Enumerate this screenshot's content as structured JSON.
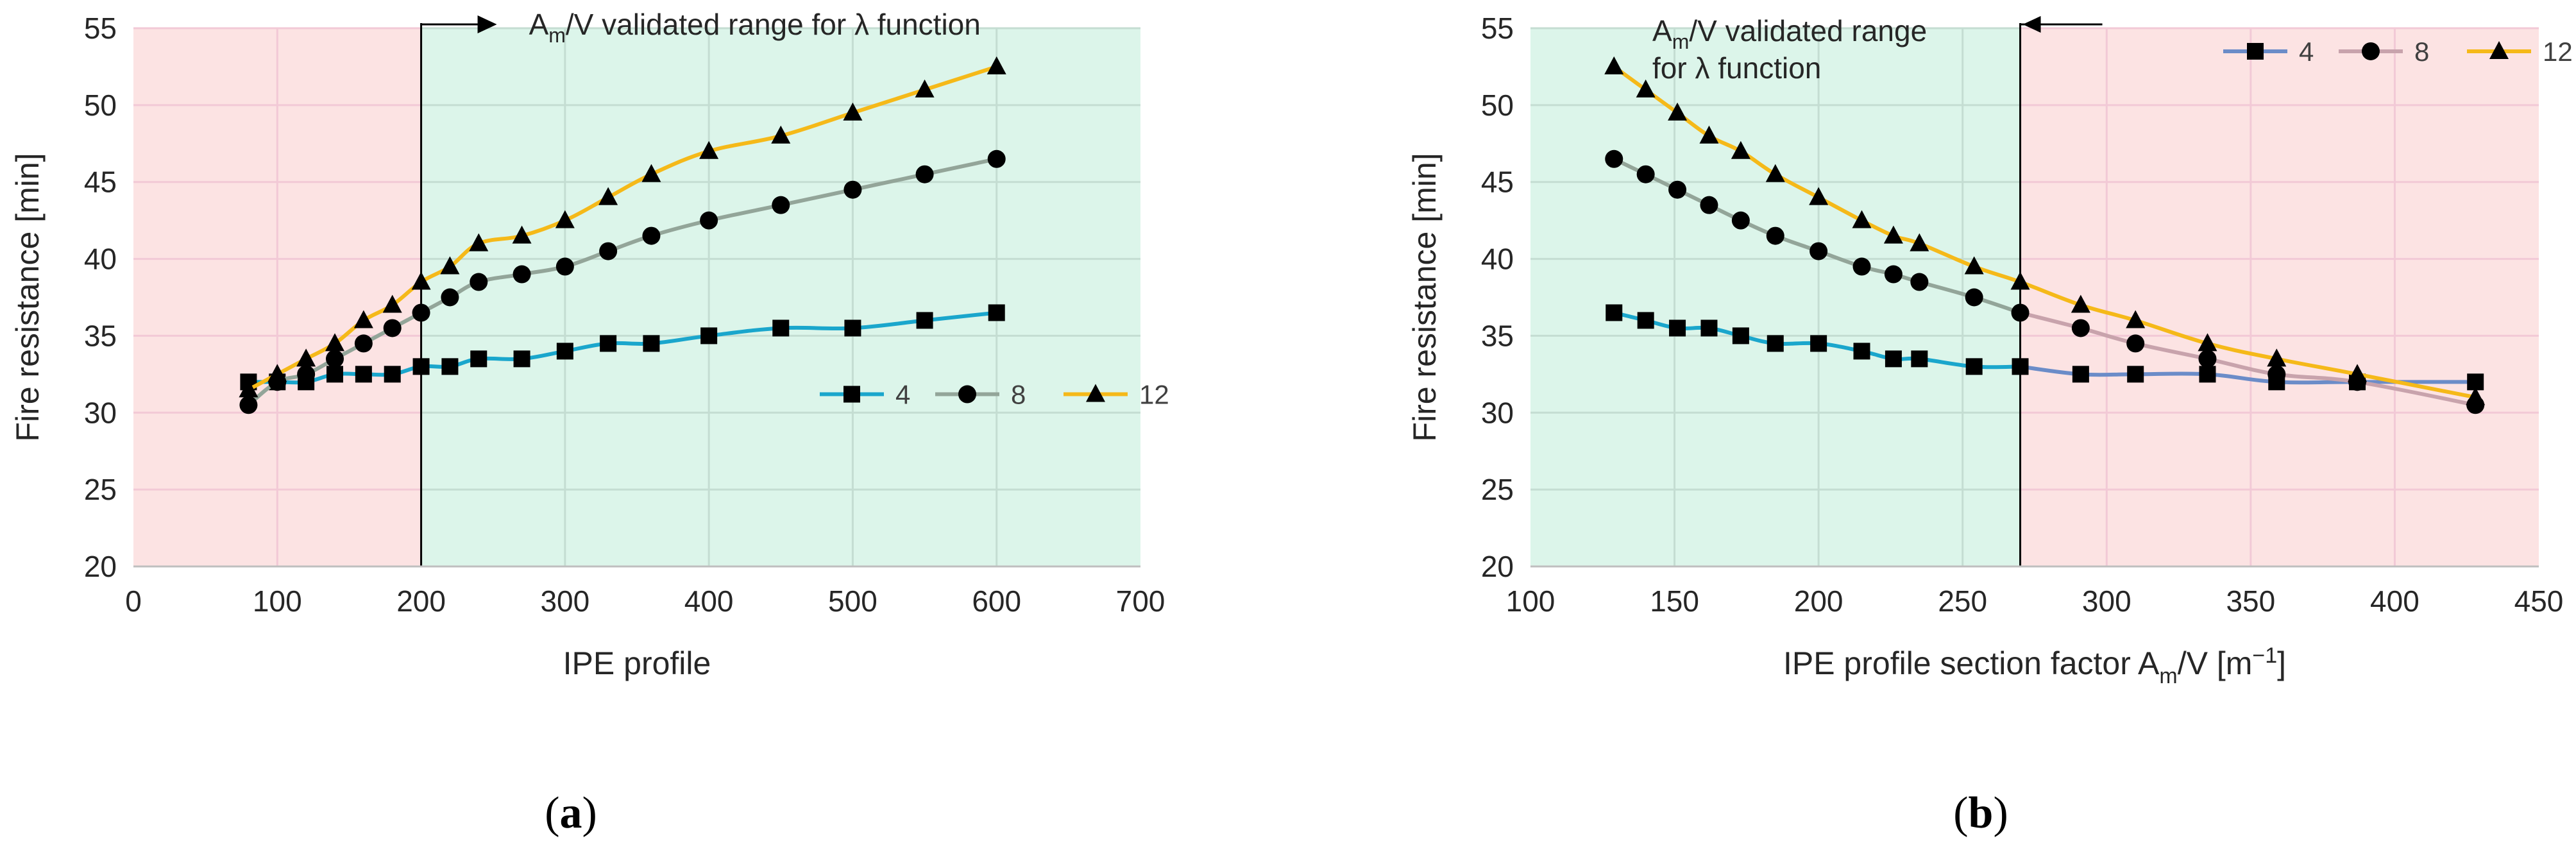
{
  "figure": {
    "caption_a": {
      "open": "(",
      "letter": "a",
      "close": ")"
    },
    "caption_b": {
      "open": "(",
      "letter": "b",
      "close": ")"
    }
  },
  "colors": {
    "series_4": "#1aa6cc",
    "series_8": "#93a599",
    "series_12": "#f5b919",
    "series_4_b": "#6b8cc8",
    "series_8_b": "#c8a3ac",
    "zone_invalid": "#fce3e3",
    "zone_valid": "#dcf5ea",
    "grid_invalid": "#f2c9d6",
    "grid_valid": "#c4ddd2"
  },
  "chart_data": [
    {
      "type": "line",
      "panel": "a",
      "title": "",
      "xlabel": "IPE profile",
      "ylabel": "Fire resistance [min]",
      "xlim": [
        0,
        700
      ],
      "ylim": [
        20,
        55
      ],
      "xticks": [
        0,
        100,
        200,
        300,
        400,
        500,
        600,
        700
      ],
      "yticks": [
        20,
        25,
        30,
        35,
        40,
        45,
        50,
        55
      ],
      "grid": true,
      "legend_position": "right-middle",
      "regions": [
        {
          "name": "outside-validated-range",
          "x_range": [
            0,
            200
          ],
          "color": "zone_invalid"
        },
        {
          "name": "validated-range",
          "x_range": [
            200,
            700
          ],
          "color": "zone_valid"
        }
      ],
      "annotation": {
        "text_main": "A",
        "text_sub": "m",
        "text_rest": "/V validated range for λ function",
        "boundary_x": 200,
        "arrow_direction": "right"
      },
      "series": [
        {
          "name": "4",
          "marker": "square",
          "color": "series_4",
          "x": [
            80,
            100,
            120,
            140,
            160,
            180,
            200,
            220,
            240,
            270,
            300,
            330,
            360,
            400,
            450,
            500,
            550,
            600
          ],
          "y": [
            32,
            32,
            32,
            32.5,
            32.5,
            32.5,
            33,
            33,
            33.5,
            33.5,
            34,
            34.5,
            34.5,
            35,
            35.5,
            35.5,
            36,
            36.5
          ]
        },
        {
          "name": "8",
          "marker": "circle",
          "color": "series_8",
          "x": [
            80,
            100,
            120,
            140,
            160,
            180,
            200,
            220,
            240,
            270,
            300,
            330,
            360,
            400,
            450,
            500,
            550,
            600
          ],
          "y": [
            30.5,
            32,
            32.5,
            33.5,
            34.5,
            35.5,
            36.5,
            37.5,
            38.5,
            39,
            39.5,
            40.5,
            41.5,
            42.5,
            43.5,
            44.5,
            45.5,
            46.5
          ]
        },
        {
          "name": "12",
          "marker": "triangle",
          "color": "series_12",
          "x": [
            80,
            100,
            120,
            140,
            160,
            180,
            200,
            220,
            240,
            270,
            300,
            330,
            360,
            400,
            450,
            500,
            550,
            600
          ],
          "y": [
            31.5,
            32.5,
            33.5,
            34.5,
            36,
            37,
            38.5,
            39.5,
            41,
            41.5,
            42.5,
            44,
            45.5,
            47,
            48,
            49.5,
            51,
            52.5
          ]
        }
      ]
    },
    {
      "type": "line",
      "panel": "b",
      "title": "",
      "xlabel_main": "IPE profile section factor A",
      "xlabel_sub": "m",
      "xlabel_rest": "/V [m",
      "xlabel_sup": "−1",
      "xlabel_end": "]",
      "ylabel": "Fire resistance [min]",
      "xlim": [
        100,
        450
      ],
      "ylim": [
        20,
        55
      ],
      "xticks": [
        100,
        150,
        200,
        250,
        300,
        350,
        400,
        450
      ],
      "yticks": [
        20,
        25,
        30,
        35,
        40,
        45,
        50,
        55
      ],
      "grid": true,
      "legend_position": "top-right",
      "regions": [
        {
          "name": "validated-range",
          "x_range": [
            100,
            270
          ],
          "color": "zone_valid"
        },
        {
          "name": "outside-validated-range",
          "x_range": [
            270,
            450
          ],
          "color": "zone_invalid"
        }
      ],
      "annotation": {
        "text_main": "A",
        "text_sub": "m",
        "text_rest": "/V validated range",
        "text_line2": "for λ function",
        "boundary_x": 270,
        "arrow_direction": "left"
      },
      "series": [
        {
          "name": "4",
          "marker": "square",
          "color": "series_4",
          "color_outside": "series_4_b",
          "x": [
            129,
            140,
            151,
            162,
            173,
            185,
            200,
            215,
            226,
            235,
            254,
            270,
            291,
            310,
            335,
            359,
            387,
            428
          ],
          "y": [
            36.5,
            36,
            35.5,
            35.5,
            35,
            34.5,
            34.5,
            34,
            33.5,
            33.5,
            33,
            33,
            32.5,
            32.5,
            32.5,
            32,
            32,
            32
          ]
        },
        {
          "name": "8",
          "marker": "circle",
          "color": "series_8",
          "color_outside": "series_8_b",
          "x": [
            129,
            140,
            151,
            162,
            173,
            185,
            200,
            215,
            226,
            235,
            254,
            270,
            291,
            310,
            335,
            359,
            387,
            428
          ],
          "y": [
            46.5,
            45.5,
            44.5,
            43.5,
            42.5,
            41.5,
            40.5,
            39.5,
            39,
            38.5,
            37.5,
            36.5,
            35.5,
            34.5,
            33.5,
            32.5,
            32,
            30.5
          ]
        },
        {
          "name": "12",
          "marker": "triangle",
          "color": "series_12",
          "color_outside": "series_12",
          "x": [
            129,
            140,
            151,
            162,
            173,
            185,
            200,
            215,
            226,
            235,
            254,
            270,
            291,
            310,
            335,
            359,
            387,
            428
          ],
          "y": [
            52.5,
            51,
            49.5,
            48,
            47,
            45.5,
            44,
            42.5,
            41.5,
            41,
            39.5,
            38.5,
            37,
            36,
            34.5,
            33.5,
            32.5,
            31
          ]
        }
      ]
    }
  ]
}
